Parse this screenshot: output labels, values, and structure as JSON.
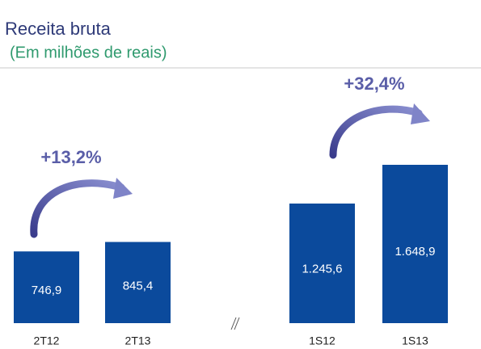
{
  "chart_data": {
    "type": "bar",
    "title": "Receita bruta",
    "subtitle": "(Em milhões de reais)",
    "categories": [
      "2T12",
      "2T13",
      "1S12",
      "1S13"
    ],
    "values": [
      746.9,
      845.4,
      1245.6,
      1648.9
    ],
    "value_labels": [
      "746,9",
      "845,4",
      "1.245,6",
      "1.648,9"
    ],
    "color": "#0b4a9c",
    "annotations": [
      "+13,2%",
      "+32,4%"
    ]
  }
}
